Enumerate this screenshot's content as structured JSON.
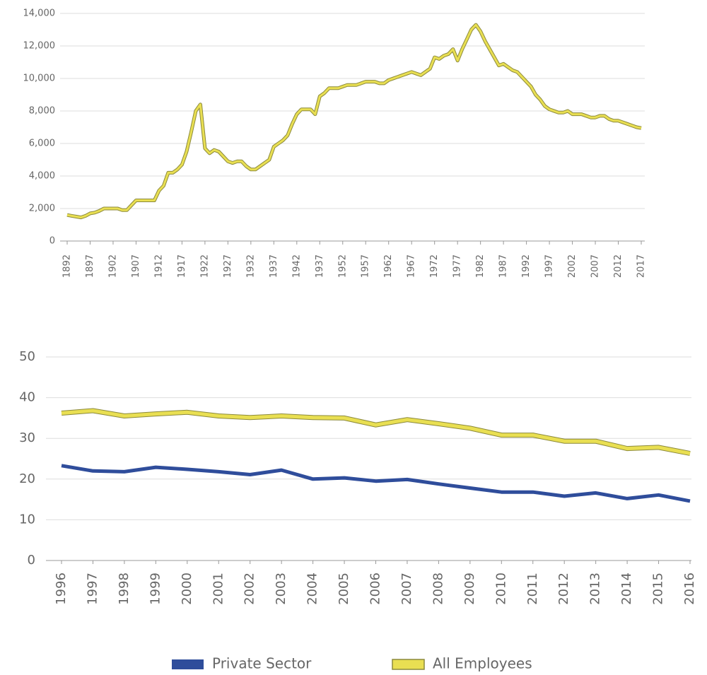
{
  "chart_data": [
    {
      "type": "line",
      "categories": [
        "1892",
        null,
        null,
        null,
        null,
        "1897",
        null,
        null,
        null,
        null,
        "1902",
        null,
        null,
        null,
        null,
        "1907",
        null,
        null,
        null,
        null,
        "1912",
        null,
        null,
        null,
        null,
        "1917",
        null,
        null,
        null,
        null,
        "1922",
        null,
        null,
        null,
        null,
        "1927",
        null,
        null,
        null,
        null,
        "1932",
        null,
        null,
        null,
        null,
        "1937",
        null,
        null,
        null,
        null,
        "1942",
        null,
        null,
        null,
        null,
        "1937",
        null,
        null,
        null,
        null,
        "1952",
        null,
        null,
        null,
        null,
        "1957",
        null,
        null,
        null,
        null,
        "1962",
        null,
        null,
        null,
        null,
        "1967",
        null,
        null,
        null,
        null,
        "1972",
        null,
        null,
        null,
        null,
        "1977",
        null,
        null,
        null,
        null,
        "1982",
        null,
        null,
        null,
        null,
        "1987",
        null,
        null,
        null,
        null,
        "1992",
        null,
        null,
        null,
        null,
        "1997",
        null,
        null,
        null,
        null,
        "2002",
        null,
        null,
        null,
        null,
        "2007",
        null,
        null,
        null,
        null,
        "2012",
        null,
        null,
        null,
        null,
        "2017"
      ],
      "values": [
        1600,
        1550,
        1500,
        1450,
        1550,
        1700,
        1750,
        1850,
        2000,
        2000,
        2000,
        2000,
        1900,
        1900,
        2200,
        2500,
        2500,
        2500,
        2500,
        2500,
        3100,
        3400,
        4200,
        4200,
        4400,
        4700,
        5500,
        6700,
        8000,
        8400,
        5700,
        5400,
        5600,
        5500,
        5200,
        4900,
        4800,
        4900,
        4900,
        4600,
        4400,
        4400,
        4600,
        4800,
        5000,
        5800,
        6000,
        6200,
        6500,
        7200,
        7800,
        8100,
        8100,
        8100,
        7800,
        8900,
        9100,
        9400,
        9400,
        9400,
        9500,
        9600,
        9600,
        9600,
        9700,
        9800,
        9800,
        9800,
        9700,
        9700,
        9900,
        10000,
        10100,
        10200,
        10300,
        10400,
        10300,
        10200,
        10400,
        10600,
        11300,
        11200,
        11400,
        11500,
        11800,
        11100,
        11800,
        12400,
        13000,
        13300,
        12900,
        12300,
        11800,
        11300,
        10800,
        10900,
        10700,
        10500,
        10400,
        10100,
        9800,
        9500,
        9000,
        8700,
        8300,
        8100,
        8000,
        7900,
        7900,
        8000,
        7800,
        7800,
        7800,
        7700,
        7600,
        7600,
        7700,
        7700,
        7500,
        7400,
        7400,
        7300,
        7200,
        7100,
        7000,
        6950
      ],
      "color": "#e9df52",
      "edgecolor": "#8c8a3c",
      "ylim": [
        0,
        14000
      ],
      "yticks": [
        0,
        {
          "value": 2000,
          "label": "2,000"
        },
        {
          "value": 4000,
          "label": "4,000"
        },
        {
          "value": 6000,
          "label": "6,000"
        },
        {
          "value": 8000,
          "label": "8,000"
        },
        {
          "value": 10000,
          "label": "10,000"
        },
        {
          "value": 12000,
          "label": "12,000"
        },
        {
          "value": 14000,
          "label": "14,000"
        }
      ],
      "grid": true
    },
    {
      "type": "line",
      "categories": [
        "1996",
        "1997",
        "1998",
        "1999",
        "2000",
        "2001",
        "2002",
        "2003",
        "2004",
        "2005",
        "2006",
        "2007",
        "2008",
        "2009",
        "2010",
        "2011",
        "2012",
        "2013",
        "2014",
        "2015",
        "2016"
      ],
      "series": [
        {
          "name": "Private Sector",
          "color": "#2f4d9b",
          "values": [
            23.3,
            22,
            21.8,
            22.9,
            22.4,
            21.8,
            21.1,
            22.2,
            20,
            20.3,
            19.5,
            19.9,
            18.8,
            17.8,
            16.8,
            16.8,
            15.8,
            16.6,
            15.2,
            16.1,
            14.6
          ]
        },
        {
          "name": "All Employees",
          "color": "#e9df52",
          "edgecolor": "#8c8a3c",
          "values": [
            36.2,
            36.8,
            35.5,
            36,
            36.4,
            35.5,
            35.1,
            35.5,
            35.1,
            35,
            33.3,
            34.6,
            33.6,
            32.5,
            30.8,
            30.8,
            29.3,
            29.3,
            27.5,
            27.8,
            26.3
          ]
        }
      ],
      "ylim": [
        0,
        50
      ],
      "yticks": [
        0,
        10,
        20,
        30,
        40,
        50
      ],
      "grid": true,
      "legend": "bottom"
    }
  ]
}
